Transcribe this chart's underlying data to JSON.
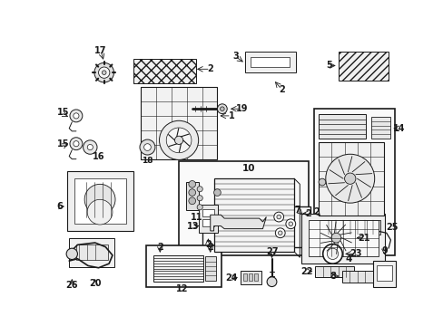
{
  "bg_color": "#ffffff",
  "lc": "#1a1a1a",
  "fig_w": 4.89,
  "fig_h": 3.6,
  "dpi": 100,
  "label_fs": 7.0,
  "border_lw": 0.9
}
